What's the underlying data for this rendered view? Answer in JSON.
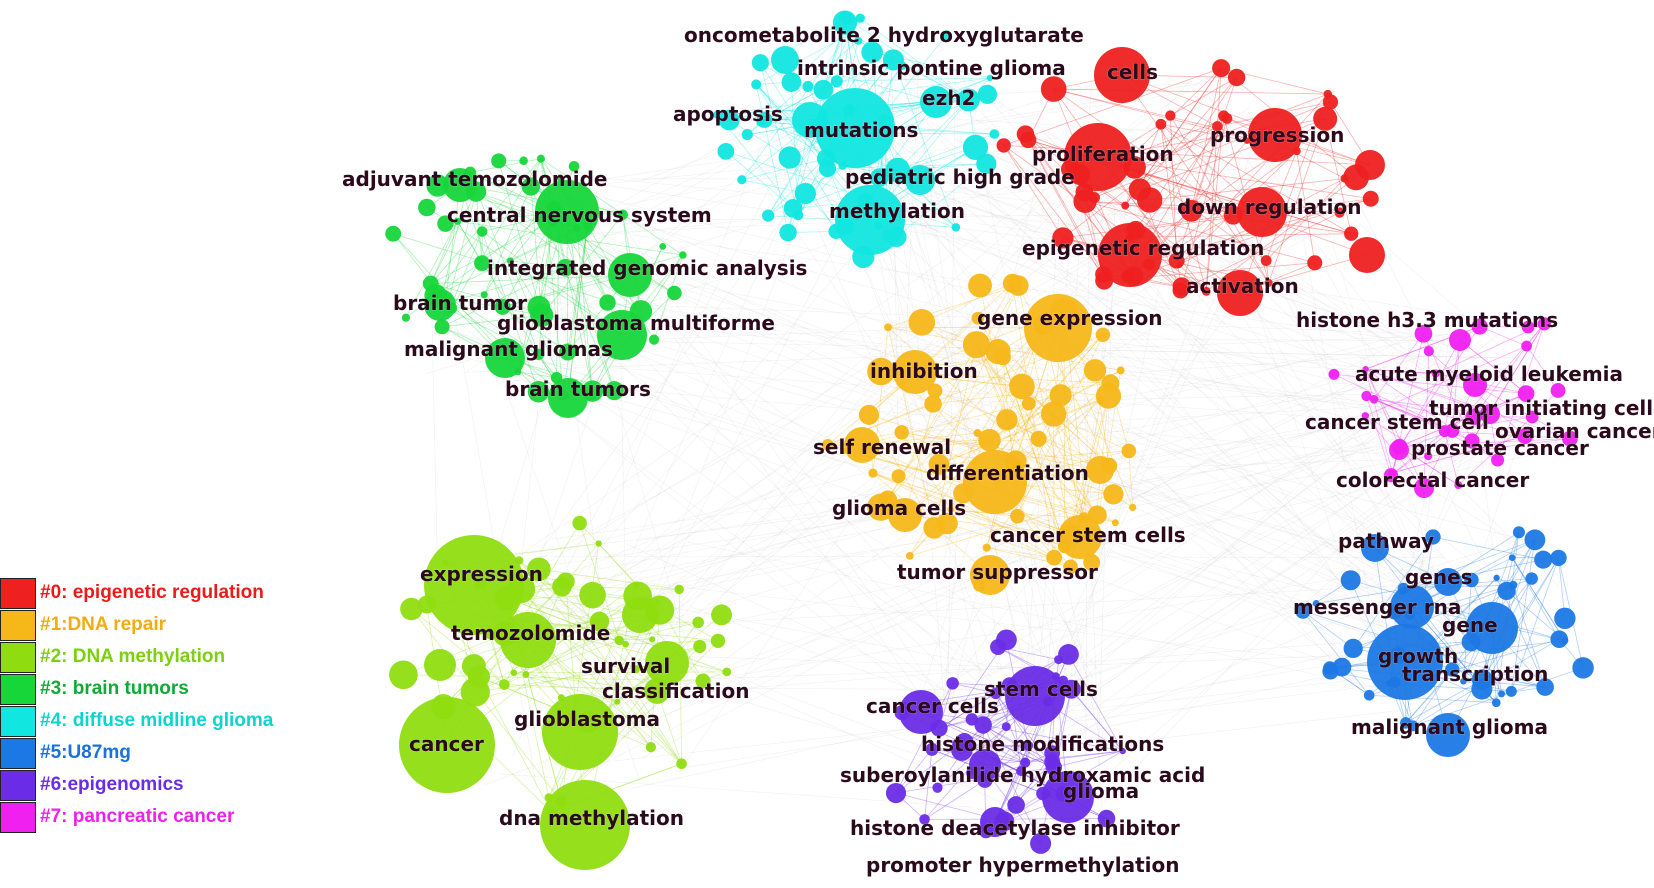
{
  "clusters": [
    {
      "id": "c0",
      "label": "#0: epigenetic regulation",
      "color": "#ee2020"
    },
    {
      "id": "c1",
      "label": "#1:DNA repair",
      "color": "#f6b719"
    },
    {
      "id": "c2",
      "label": "#2: DNA methylation",
      "color": "#8fdd10"
    },
    {
      "id": "c3",
      "label": "#3: brain tumors",
      "color": "#16d63a"
    },
    {
      "id": "c4",
      "label": "#4: diffuse midline glioma",
      "color": "#12e6e0"
    },
    {
      "id": "c5",
      "label": "#5:U87mg",
      "color": "#1c78e4"
    },
    {
      "id": "c6",
      "label": "#6:epigenomics",
      "color": "#6a2ce6"
    },
    {
      "id": "c7",
      "label": "#7: pancreatic cancer",
      "color": "#f020f0"
    }
  ],
  "legend_text_colors": [
    "#ee1a1a",
    "#f2ab10",
    "#7ccf12",
    "#10aa36",
    "#0cd4d0",
    "#1a70dc",
    "#6a2ce6",
    "#ee20ee"
  ],
  "terms": {
    "c0": [
      "cells",
      "progression",
      "proliferation",
      "down regulation",
      "epigenetic regulation",
      "activation"
    ],
    "c1": [
      "gene expression",
      "inhibition",
      "self renewal",
      "differentiation",
      "glioma cells",
      "cancer stem cells",
      "tumor suppressor"
    ],
    "c2": [
      "expression",
      "temozolomide",
      "survival",
      "classification",
      "glioblastoma",
      "cancer",
      "dna methylation"
    ],
    "c3": [
      "adjuvant temozolomide",
      "central nervous system",
      "integrated genomic analysis",
      "brain tumor",
      "glioblastoma multiforme",
      "malignant gliomas",
      "brain tumors"
    ],
    "c4": [
      "oncometabolite 2 hydroxyglutarate",
      "intrinsic pontine glioma",
      "ezh2",
      "apoptosis",
      "mutations",
      "pediatric high grade",
      "methylation"
    ],
    "c5": [
      "pathway",
      "genes",
      "messenger rna",
      "gene",
      "growth",
      "transcription",
      "malignant glioma"
    ],
    "c6": [
      "stem cells",
      "cancer cells",
      "histone modifications",
      "suberoylanilide hydroxamic acid",
      "glioma",
      "histone deacetylase inhibitor",
      "promoter hypermethylation"
    ],
    "c7": [
      "histone h3.3 mutations",
      "acute myeloid leukemia",
      "tumor initiating cells",
      "cancer stem cell",
      "ovarian cancer",
      "prostate cancer",
      "colorectal cancer"
    ]
  }
}
